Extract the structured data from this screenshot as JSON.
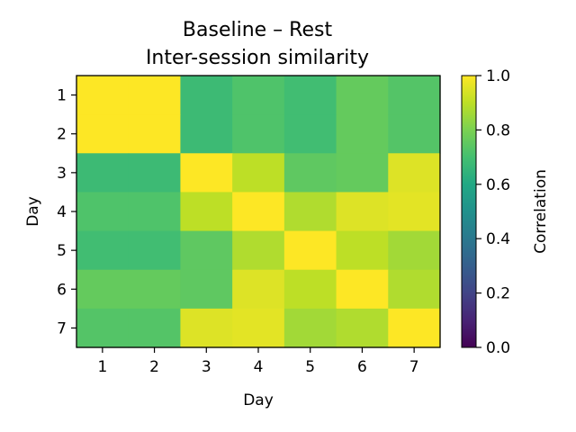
{
  "chart_data": {
    "type": "heatmap",
    "title": "Baseline – Rest",
    "subtitle": "Inter-session similarity",
    "xlabel": "Day",
    "ylabel": "Day",
    "x_categories": [
      "1",
      "2",
      "3",
      "4",
      "5",
      "6",
      "7"
    ],
    "y_categories": [
      "1",
      "2",
      "3",
      "4",
      "5",
      "6",
      "7"
    ],
    "values": [
      [
        1.0,
        1.0,
        0.68,
        0.72,
        0.69,
        0.76,
        0.73
      ],
      [
        1.0,
        1.0,
        0.68,
        0.72,
        0.69,
        0.76,
        0.73
      ],
      [
        0.68,
        0.68,
        1.0,
        0.9,
        0.75,
        0.76,
        0.95
      ],
      [
        0.72,
        0.72,
        0.9,
        1.0,
        0.88,
        0.95,
        0.96
      ],
      [
        0.69,
        0.69,
        0.75,
        0.88,
        1.0,
        0.9,
        0.86
      ],
      [
        0.76,
        0.76,
        0.75,
        0.95,
        0.9,
        1.0,
        0.88
      ],
      [
        0.73,
        0.73,
        0.95,
        0.96,
        0.86,
        0.88,
        1.0
      ]
    ],
    "colorbar": {
      "label": "Correlation",
      "range": [
        0.0,
        1.0
      ],
      "ticks": [
        "0.0",
        "0.2",
        "0.4",
        "0.6",
        "0.8",
        "1.0"
      ],
      "colormap": "viridis"
    },
    "grid": false
  }
}
